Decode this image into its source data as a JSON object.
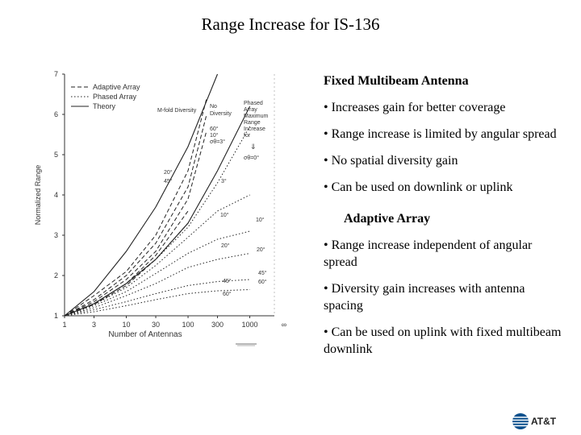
{
  "slide": {
    "title": "Range Increase for IS-136"
  },
  "chart_data": {
    "type": "line",
    "title": "",
    "xlabel": "Number of Antennas",
    "ylabel": "Normalized Range",
    "x_ticks": [
      "1",
      "3",
      "10",
      "30",
      "100",
      "300",
      "1000",
      "∞"
    ],
    "x_log_values": [
      1,
      3,
      10,
      30,
      100,
      300,
      1000
    ],
    "ylim": [
      1,
      7
    ],
    "y_ticks": [
      1,
      2,
      3,
      4,
      5,
      6,
      7
    ],
    "legend": [
      {
        "label": "Adaptive Array",
        "style": "dashed"
      },
      {
        "label": "Phased Array",
        "style": "dotted"
      },
      {
        "label": "Theory",
        "style": "solid"
      }
    ],
    "series": [
      {
        "name": "Theory M-fold Diversity",
        "style": "solid",
        "x": [
          1,
          3,
          10,
          30,
          100,
          300
        ],
        "y": [
          1.0,
          1.6,
          2.6,
          3.7,
          5.2,
          7.0
        ]
      },
      {
        "name": "Theory No Diversity",
        "style": "solid",
        "x": [
          1,
          3,
          10,
          30,
          100,
          300,
          1000
        ],
        "y": [
          1.0,
          1.3,
          1.8,
          2.4,
          3.3,
          4.6,
          6.2
        ]
      },
      {
        "name": "Adaptive 60°",
        "style": "dashed",
        "x": [
          1,
          3,
          10,
          30,
          100,
          200
        ],
        "y": [
          1.0,
          1.5,
          2.1,
          3.0,
          4.6,
          6.4
        ]
      },
      {
        "name": "Adaptive 10°",
        "style": "dashed",
        "x": [
          1,
          3,
          10,
          30,
          100,
          200
        ],
        "y": [
          1.0,
          1.4,
          2.0,
          2.8,
          4.2,
          6.0
        ]
      },
      {
        "name": "Adaptive σθ=3°",
        "style": "dashed",
        "x": [
          1,
          3,
          10,
          30,
          100,
          200
        ],
        "y": [
          1.0,
          1.35,
          1.9,
          2.6,
          3.9,
          5.6
        ]
      },
      {
        "name": "Adaptive 20°",
        "style": "dashed",
        "x": [
          1,
          3,
          10,
          30,
          100
        ],
        "y": [
          1.0,
          1.3,
          1.8,
          2.5,
          3.6
        ]
      },
      {
        "name": "Adaptive 45°",
        "style": "dashed",
        "x": [
          1,
          3,
          10,
          30,
          100
        ],
        "y": [
          1.0,
          1.28,
          1.75,
          2.4,
          3.3
        ]
      },
      {
        "name": "Phased σθ=0°",
        "style": "dotted",
        "x": [
          1,
          3,
          10,
          30,
          100,
          300,
          1000
        ],
        "y": [
          1.0,
          1.3,
          1.8,
          2.4,
          3.2,
          4.3,
          5.7
        ]
      },
      {
        "name": "Phased 3°",
        "style": "dotted",
        "x": [
          1,
          3,
          10,
          30,
          100,
          300,
          1000
        ],
        "y": [
          1.0,
          1.28,
          1.7,
          2.25,
          2.95,
          3.6,
          4.0
        ]
      },
      {
        "name": "Phased 10°",
        "style": "dotted",
        "x": [
          1,
          3,
          10,
          30,
          100,
          300,
          1000
        ],
        "y": [
          1.0,
          1.25,
          1.6,
          2.05,
          2.55,
          2.9,
          3.1
        ]
      },
      {
        "name": "Phased 20°",
        "style": "dotted",
        "x": [
          1,
          3,
          10,
          30,
          100,
          300,
          1000
        ],
        "y": [
          1.0,
          1.2,
          1.5,
          1.8,
          2.2,
          2.4,
          2.55
        ]
      },
      {
        "name": "Phased 45°",
        "style": "dotted",
        "x": [
          1,
          3,
          10,
          30,
          100,
          300,
          1000
        ],
        "y": [
          1.0,
          1.15,
          1.35,
          1.55,
          1.75,
          1.85,
          1.9
        ]
      },
      {
        "name": "Phased 60°",
        "style": "dotted",
        "x": [
          1,
          3,
          10,
          30,
          100,
          300,
          1000
        ],
        "y": [
          1.0,
          1.1,
          1.25,
          1.4,
          1.55,
          1.62,
          1.65
        ]
      }
    ],
    "annotations": {
      "m_fold": "M-fold Diversity",
      "no_div": [
        "No",
        "Diversity"
      ],
      "phased_max": [
        "Phased",
        "Array",
        "Maximum",
        "Range",
        "Increase",
        "for"
      ],
      "arrow": "⇓",
      "sigma0": "σθ=0°",
      "a60": "60°",
      "a10": "10°",
      "asig3": "σθ=3°",
      "a20": "20°",
      "a45": "45°",
      "p3": "3°",
      "p10": "10°",
      "p10r": "10°",
      "p20": "20°",
      "p20r": "20°",
      "p45": "45°",
      "p45r": "45°",
      "p60r": "60°",
      "p60": "60°"
    }
  },
  "panel": {
    "fixed_heading": "Fixed Multibeam Antenna",
    "fixed_bullets": [
      "• Increases gain for better coverage",
      "• Range increase is limited by angular spread",
      "• No spatial diversity gain",
      "• Can be used on downlink or uplink"
    ],
    "adaptive_heading": "Adaptive Array",
    "adaptive_bullets": [
      "• Range increase independent of angular spread",
      "• Diversity gain increases with antenna spacing",
      "• Can be used on uplink with fixed multibeam downlink"
    ]
  },
  "logo": {
    "text": "AT&T",
    "color": "#0a4f8c"
  }
}
